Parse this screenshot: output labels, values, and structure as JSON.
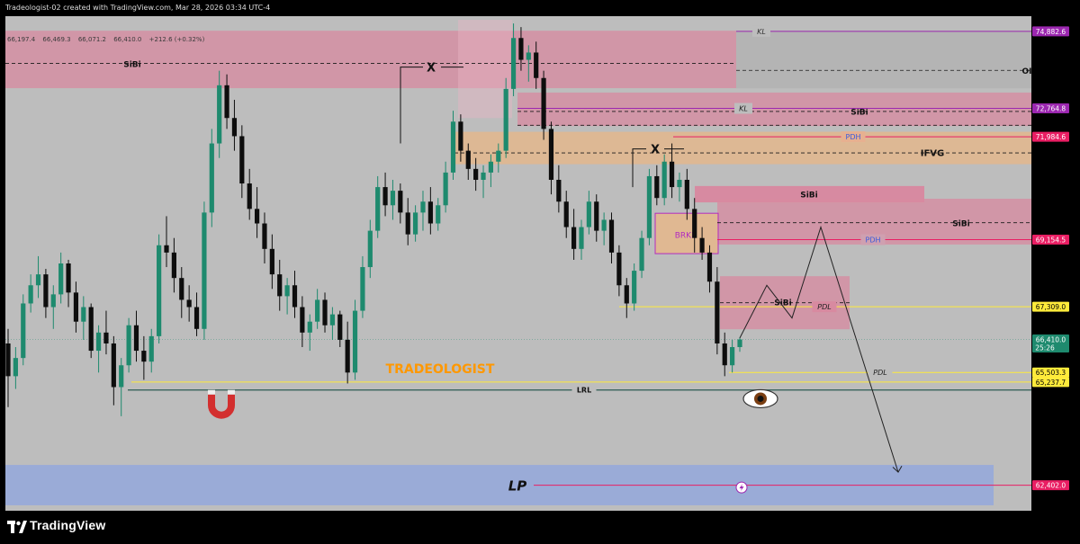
{
  "header": {
    "title": "Tradeologist-02 created with TradingView.com, Mar 28, 2026 03:34 UTC-4"
  },
  "ohlc": {
    "open": "66,197.4",
    "high": "66,469.3",
    "low": "66,071.2",
    "close": "66,410.0",
    "change": "+212.6 (+0.32%)"
  },
  "footer": {
    "brand": "TradingView"
  },
  "colors": {
    "bg": "#bdbdbd",
    "bull": "#1e8a6e",
    "bear": "#0d0d0d",
    "sibi_pink": "#d88aa0",
    "ifvg_orange": "#e8b787",
    "kl_purple": "#9c27b0",
    "pdh_pink": "#e91e63",
    "pdl_yellow": "#ffeb3b",
    "lp_blue": "#8fa6e0",
    "lrl_teal": "#2d5a52",
    "watermark": "#ff9800"
  },
  "chart_data": {
    "type": "candlestick",
    "symbol_pair": "BTCUSD",
    "ylim": [
      61700,
      75300
    ],
    "price_axis": {
      "tick_labels": [
        {
          "value": 74882.6,
          "label": "74,882.6",
          "color": "#9c27b0"
        },
        {
          "value": 72764.8,
          "label": "72,764.8",
          "color": "#9c27b0"
        },
        {
          "value": 71984.6,
          "label": "71,984.6",
          "color": "#e91e63"
        },
        {
          "value": 69154.5,
          "label": "69,154.5",
          "color": "#e91e63"
        },
        {
          "value": 67309.0,
          "label": "67,309.0",
          "color": "#ffeb3b"
        },
        {
          "value": 66410.0,
          "label": "66,410.0",
          "sub": "25:26",
          "color": "#1e8a6e"
        },
        {
          "value": 65503.3,
          "label": "65,503.3",
          "color": "#ffeb3b"
        },
        {
          "value": 65237.7,
          "label": "65,237.7",
          "color": "#ffeb3b"
        },
        {
          "value": 62402.0,
          "label": "62,402.0",
          "color": "#e91e63"
        }
      ]
    },
    "levels": [
      {
        "label": "KL",
        "value": 74882.6,
        "style": "solid",
        "color": "#9c27b0"
      },
      {
        "label": "KL",
        "value": 72764.8,
        "style": "solid",
        "color": "#9c27b0"
      },
      {
        "label": "PDH",
        "value": 71984.6,
        "style": "solid",
        "color": "#e91e63"
      },
      {
        "label": "PDH",
        "value": 69154.5,
        "style": "solid",
        "color": "#e91e63"
      },
      {
        "label": "PDL",
        "value": 67309.0,
        "style": "solid",
        "color": "#ffeb3b"
      },
      {
        "label": "PDL",
        "value": 65503.3,
        "style": "solid",
        "color": "#ffeb3b"
      },
      {
        "label": "",
        "value": 65237.7,
        "style": "solid",
        "color": "#ffeb3b"
      },
      {
        "label": "LRL",
        "value": 65020,
        "style": "solid",
        "color": "#2d5a52"
      },
      {
        "label": "",
        "value": 62402.0,
        "style": "solid",
        "color": "#e91e63"
      }
    ],
    "zones": [
      {
        "label": "SiBi",
        "top": 74900,
        "bottom": 73320,
        "color": "#d88aa0"
      },
      {
        "label": "",
        "top": 74900,
        "bottom": 73320,
        "color": "#b4b4b4"
      },
      {
        "label": "OI",
        "top": 74900,
        "bottom": 73320,
        "color": "#b4b4b4"
      },
      {
        "label": "SiBi",
        "top": 73200,
        "bottom": 72280,
        "color": "#d88aa0"
      },
      {
        "label": "IFVG",
        "top": 72120,
        "bottom": 71230,
        "color": "#e8b787"
      },
      {
        "label": "SiBi",
        "top": 70630,
        "bottom": 70180,
        "color": "#e07a98"
      },
      {
        "label": "SiBi",
        "top": 70280,
        "bottom": 69020,
        "color": "#d88aa0"
      },
      {
        "label": "BRKB",
        "top": 69880,
        "bottom": 68770,
        "color": "#e8b787"
      },
      {
        "label": "SiBi",
        "top": 68150,
        "bottom": 66690,
        "color": "#d88aa0"
      },
      {
        "label": "LP",
        "top": 62960,
        "bottom": 61850,
        "color": "#8fa6e0"
      }
    ],
    "annotations": [
      "X",
      "X",
      "TRADEOLOGIST"
    ],
    "projection": [
      [
        66450,
        67900
      ],
      [
        67000,
        69500
      ],
      [
        64350,
        62760
      ]
    ],
    "candles": [
      {
        "o": 66300,
        "h": 66700,
        "l": 64550,
        "c": 65400
      },
      {
        "o": 65400,
        "h": 66200,
        "l": 65050,
        "c": 65900
      },
      {
        "o": 65900,
        "h": 67650,
        "l": 65700,
        "c": 67400
      },
      {
        "o": 67400,
        "h": 68200,
        "l": 67150,
        "c": 67900
      },
      {
        "o": 67900,
        "h": 68700,
        "l": 67550,
        "c": 68200
      },
      {
        "o": 68200,
        "h": 68350,
        "l": 67000,
        "c": 67300
      },
      {
        "o": 67300,
        "h": 67900,
        "l": 66700,
        "c": 67650
      },
      {
        "o": 67650,
        "h": 68800,
        "l": 67400,
        "c": 68500
      },
      {
        "o": 68500,
        "h": 68600,
        "l": 67300,
        "c": 67700
      },
      {
        "o": 67700,
        "h": 68000,
        "l": 66600,
        "c": 66900
      },
      {
        "o": 66900,
        "h": 67600,
        "l": 66400,
        "c": 67300
      },
      {
        "o": 67300,
        "h": 67400,
        "l": 65900,
        "c": 66100
      },
      {
        "o": 66100,
        "h": 66800,
        "l": 65500,
        "c": 66600
      },
      {
        "o": 66600,
        "h": 67200,
        "l": 66000,
        "c": 66300
      },
      {
        "o": 66300,
        "h": 66500,
        "l": 64600,
        "c": 65100
      },
      {
        "o": 65100,
        "h": 65900,
        "l": 64300,
        "c": 65700
      },
      {
        "o": 65700,
        "h": 67000,
        "l": 65500,
        "c": 66800
      },
      {
        "o": 66800,
        "h": 67200,
        "l": 65800,
        "c": 66100
      },
      {
        "o": 66100,
        "h": 66500,
        "l": 65300,
        "c": 65800
      },
      {
        "o": 65800,
        "h": 66700,
        "l": 65500,
        "c": 66500
      },
      {
        "o": 66500,
        "h": 69300,
        "l": 66300,
        "c": 69000
      },
      {
        "o": 69000,
        "h": 69800,
        "l": 68400,
        "c": 68800
      },
      {
        "o": 68800,
        "h": 69200,
        "l": 67700,
        "c": 68100
      },
      {
        "o": 68100,
        "h": 68400,
        "l": 67000,
        "c": 67500
      },
      {
        "o": 67500,
        "h": 67900,
        "l": 66900,
        "c": 67300
      },
      {
        "o": 67300,
        "h": 67700,
        "l": 66500,
        "c": 66700
      },
      {
        "o": 66700,
        "h": 70200,
        "l": 66400,
        "c": 69900
      },
      {
        "o": 69900,
        "h": 72200,
        "l": 69500,
        "c": 71800
      },
      {
        "o": 71800,
        "h": 73800,
        "l": 71400,
        "c": 73400
      },
      {
        "o": 73400,
        "h": 73700,
        "l": 72200,
        "c": 72500
      },
      {
        "o": 72500,
        "h": 73000,
        "l": 71600,
        "c": 72000
      },
      {
        "o": 72000,
        "h": 72300,
        "l": 70300,
        "c": 70700
      },
      {
        "o": 70700,
        "h": 71100,
        "l": 69700,
        "c": 70000
      },
      {
        "o": 70000,
        "h": 70600,
        "l": 69200,
        "c": 69600
      },
      {
        "o": 69600,
        "h": 69900,
        "l": 68500,
        "c": 68900
      },
      {
        "o": 68900,
        "h": 69300,
        "l": 67800,
        "c": 68200
      },
      {
        "o": 68200,
        "h": 68600,
        "l": 67200,
        "c": 67600
      },
      {
        "o": 67600,
        "h": 68100,
        "l": 67100,
        "c": 67900
      },
      {
        "o": 67900,
        "h": 68300,
        "l": 67000,
        "c": 67300
      },
      {
        "o": 67300,
        "h": 67600,
        "l": 66200,
        "c": 66600
      },
      {
        "o": 66600,
        "h": 67100,
        "l": 66100,
        "c": 66900
      },
      {
        "o": 66900,
        "h": 67800,
        "l": 66700,
        "c": 67500
      },
      {
        "o": 67500,
        "h": 67700,
        "l": 66600,
        "c": 66800
      },
      {
        "o": 66800,
        "h": 67300,
        "l": 66400,
        "c": 67100
      },
      {
        "o": 67100,
        "h": 67200,
        "l": 66200,
        "c": 66400
      },
      {
        "o": 66400,
        "h": 66900,
        "l": 65200,
        "c": 65500
      },
      {
        "o": 65500,
        "h": 67500,
        "l": 65300,
        "c": 67200
      },
      {
        "o": 67200,
        "h": 68700,
        "l": 67000,
        "c": 68400
      },
      {
        "o": 68400,
        "h": 69700,
        "l": 68100,
        "c": 69400
      },
      {
        "o": 69400,
        "h": 70900,
        "l": 69200,
        "c": 70600
      },
      {
        "o": 70600,
        "h": 71000,
        "l": 69800,
        "c": 70100
      },
      {
        "o": 70100,
        "h": 70800,
        "l": 69700,
        "c": 70500
      },
      {
        "o": 70500,
        "h": 70700,
        "l": 69600,
        "c": 69900
      },
      {
        "o": 69900,
        "h": 70300,
        "l": 69000,
        "c": 69300
      },
      {
        "o": 69300,
        "h": 70100,
        "l": 69100,
        "c": 69900
      },
      {
        "o": 69900,
        "h": 70500,
        "l": 69400,
        "c": 70200
      },
      {
        "o": 70200,
        "h": 70600,
        "l": 69300,
        "c": 69600
      },
      {
        "o": 69600,
        "h": 70300,
        "l": 69400,
        "c": 70100
      },
      {
        "o": 70100,
        "h": 71300,
        "l": 69900,
        "c": 71000
      },
      {
        "o": 71000,
        "h": 72700,
        "l": 70800,
        "c": 72400
      },
      {
        "o": 72400,
        "h": 72600,
        "l": 71300,
        "c": 71600
      },
      {
        "o": 71600,
        "h": 71800,
        "l": 70800,
        "c": 71100
      },
      {
        "o": 71100,
        "h": 71400,
        "l": 70500,
        "c": 70800
      },
      {
        "o": 70800,
        "h": 71200,
        "l": 70300,
        "c": 71000
      },
      {
        "o": 71000,
        "h": 71500,
        "l": 70600,
        "c": 71300
      },
      {
        "o": 71300,
        "h": 71800,
        "l": 71000,
        "c": 71600
      },
      {
        "o": 71600,
        "h": 73600,
        "l": 71400,
        "c": 73300
      },
      {
        "o": 73300,
        "h": 75100,
        "l": 73100,
        "c": 74700
      },
      {
        "o": 74700,
        "h": 75000,
        "l": 73800,
        "c": 74100
      },
      {
        "o": 74100,
        "h": 74500,
        "l": 73500,
        "c": 74300
      },
      {
        "o": 74300,
        "h": 74600,
        "l": 73300,
        "c": 73600
      },
      {
        "o": 73600,
        "h": 73800,
        "l": 71900,
        "c": 72200
      },
      {
        "o": 72200,
        "h": 72400,
        "l": 70400,
        "c": 70800
      },
      {
        "o": 70800,
        "h": 71200,
        "l": 69900,
        "c": 70200
      },
      {
        "o": 70200,
        "h": 70500,
        "l": 69200,
        "c": 69500
      },
      {
        "o": 69500,
        "h": 70000,
        "l": 68600,
        "c": 68900
      },
      {
        "o": 68900,
        "h": 69700,
        "l": 68600,
        "c": 69500
      },
      {
        "o": 69500,
        "h": 70500,
        "l": 69300,
        "c": 70200
      },
      {
        "o": 70200,
        "h": 70400,
        "l": 69100,
        "c": 69400
      },
      {
        "o": 69400,
        "h": 69900,
        "l": 69000,
        "c": 69700
      },
      {
        "o": 69700,
        "h": 69900,
        "l": 68500,
        "c": 68800
      },
      {
        "o": 68800,
        "h": 69000,
        "l": 67600,
        "c": 67900
      },
      {
        "o": 67900,
        "h": 68100,
        "l": 67000,
        "c": 67400
      },
      {
        "o": 67400,
        "h": 68500,
        "l": 67200,
        "c": 68300
      },
      {
        "o": 68300,
        "h": 69400,
        "l": 68100,
        "c": 69200
      },
      {
        "o": 69200,
        "h": 71100,
        "l": 69000,
        "c": 70900
      },
      {
        "o": 70900,
        "h": 71200,
        "l": 70100,
        "c": 70300
      },
      {
        "o": 70300,
        "h": 71500,
        "l": 70100,
        "c": 71300
      },
      {
        "o": 71300,
        "h": 71800,
        "l": 70300,
        "c": 70600
      },
      {
        "o": 70600,
        "h": 71000,
        "l": 70200,
        "c": 70800
      },
      {
        "o": 70800,
        "h": 71100,
        "l": 69700,
        "c": 70000
      },
      {
        "o": 70000,
        "h": 70300,
        "l": 68800,
        "c": 69200
      },
      {
        "o": 69200,
        "h": 69500,
        "l": 68600,
        "c": 68800
      },
      {
        "o": 68800,
        "h": 69000,
        "l": 67700,
        "c": 68000
      },
      {
        "o": 68000,
        "h": 68400,
        "l": 66000,
        "c": 66300
      },
      {
        "o": 66300,
        "h": 66600,
        "l": 65400,
        "c": 65700
      },
      {
        "o": 65700,
        "h": 66400,
        "l": 65500,
        "c": 66200
      },
      {
        "o": 66200,
        "h": 66470,
        "l": 66070,
        "c": 66410
      }
    ]
  }
}
